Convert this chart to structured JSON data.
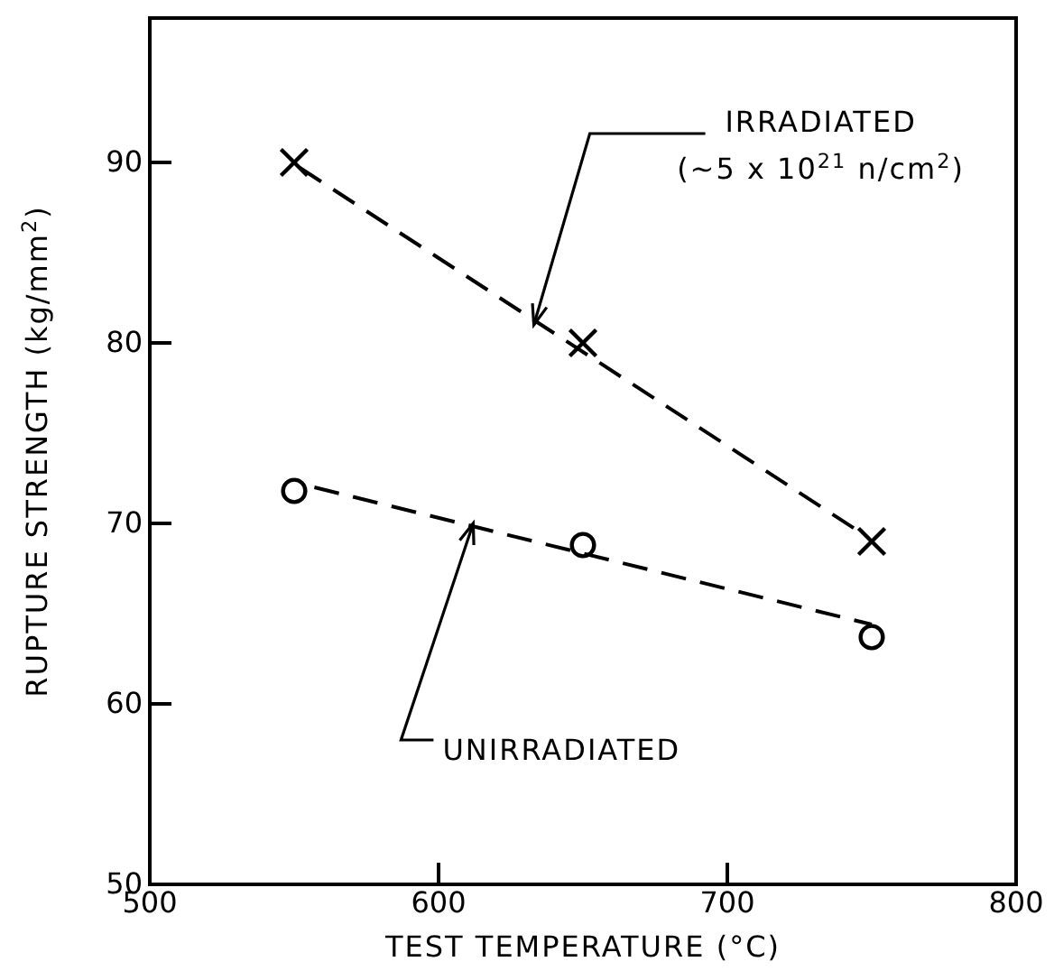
{
  "chart_data": {
    "type": "scatter",
    "xlabel": "TEST TEMPERATURE (°C)",
    "ylabel": "RUPTURE STRENGTH (kg/mm$^{2}$)",
    "xlim": [
      500,
      800
    ],
    "xticks": [
      500,
      600,
      700,
      800
    ],
    "ylim": [
      50,
      98
    ],
    "yticks": [
      50,
      60,
      70,
      80,
      90
    ],
    "grid": false,
    "series": [
      {
        "color": "#000000",
        "marker": "cross",
        "x": [
          550,
          650,
          750
        ],
        "values": [
          90,
          80,
          69
        ]
      },
      {
        "type": "line",
        "color": "#000000",
        "marker": "none",
        "line_style": "dashed",
        "x": [
          552,
          748
        ],
        "values": [
          89.7,
          69.3
        ]
      },
      {
        "color": "#000000",
        "marker": "circle",
        "x": [
          550,
          650,
          750
        ],
        "values": [
          71.8,
          68.8,
          63.7
        ]
      },
      {
        "type": "line",
        "color": "#000000",
        "marker": "none",
        "line_style": "dashed",
        "x": [
          557,
          750
        ],
        "values": [
          72.0,
          64.4
        ]
      }
    ],
    "annotations": [
      {
        "text": "IRRADIATED",
        "x": 633,
        "y": 81
      },
      "(~5 x 10$^{21}$ n/cm$^{2}$)",
      {
        "text": "UNIRRADIATED",
        "x": 612,
        "y": 70
      }
    ]
  }
}
